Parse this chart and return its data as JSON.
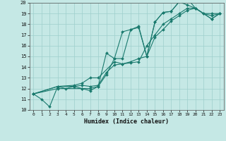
{
  "xlabel": "Humidex (Indice chaleur)",
  "xlim": [
    -0.5,
    23.5
  ],
  "ylim": [
    10,
    20
  ],
  "xticks": [
    0,
    1,
    2,
    3,
    4,
    5,
    6,
    7,
    8,
    9,
    10,
    11,
    12,
    13,
    14,
    15,
    16,
    17,
    18,
    19,
    20,
    21,
    22,
    23
  ],
  "yticks": [
    10,
    11,
    12,
    13,
    14,
    15,
    16,
    17,
    18,
    19,
    20
  ],
  "bg_color": "#c5e8e5",
  "grid_color": "#9ecfcc",
  "line_color": "#1a7a6e",
  "series": [
    {
      "x": [
        0,
        1,
        2,
        3,
        4,
        5,
        6,
        7,
        8,
        9,
        10,
        11,
        12,
        13,
        14,
        15,
        16,
        17,
        18,
        19,
        20,
        21,
        22,
        23
      ],
      "y": [
        11.5,
        11.0,
        10.3,
        12.2,
        12.0,
        12.2,
        12.0,
        11.8,
        12.2,
        15.3,
        14.8,
        17.3,
        17.5,
        17.7,
        15.0,
        18.2,
        19.1,
        19.2,
        20.1,
        20.4,
        19.5,
        19.0,
        19.0,
        19.0
      ]
    },
    {
      "x": [
        0,
        3,
        5,
        6,
        7,
        8,
        10,
        11,
        12,
        13,
        14,
        15,
        16,
        17,
        18,
        19,
        20,
        22,
        23
      ],
      "y": [
        11.5,
        12.2,
        12.3,
        12.5,
        13.0,
        13.0,
        14.5,
        14.3,
        14.4,
        14.5,
        16.0,
        17.0,
        18.0,
        18.5,
        19.0,
        19.5,
        19.5,
        18.5,
        19.0
      ]
    },
    {
      "x": [
        0,
        3,
        5,
        6,
        7,
        8,
        9,
        10,
        11,
        12,
        13,
        14,
        15,
        16,
        17,
        18,
        19,
        20,
        21,
        22,
        23
      ],
      "y": [
        11.5,
        12.2,
        12.2,
        12.3,
        12.2,
        12.3,
        13.5,
        14.2,
        14.3,
        14.5,
        14.8,
        15.0,
        16.8,
        17.5,
        18.3,
        18.8,
        19.3,
        19.5,
        19.0,
        18.8,
        19.0
      ]
    },
    {
      "x": [
        0,
        3,
        6,
        7,
        8,
        9,
        10,
        11,
        12,
        13,
        14,
        15,
        16,
        17,
        18,
        19,
        20,
        22,
        23
      ],
      "y": [
        11.5,
        12.0,
        12.0,
        12.0,
        12.2,
        13.3,
        14.8,
        14.8,
        17.5,
        17.8,
        15.0,
        18.2,
        19.1,
        19.2,
        20.1,
        19.8,
        19.5,
        18.5,
        19.0
      ]
    }
  ]
}
